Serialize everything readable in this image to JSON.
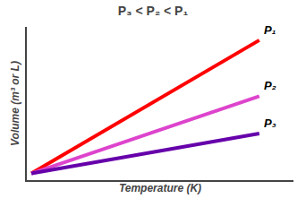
{
  "chart_data": {
    "type": "line",
    "title": "P₃ < P₂ < P₁",
    "xlabel": "Temperature (K)",
    "ylabel": "Volume (m³ or L)",
    "x": [
      0.0,
      1.0
    ],
    "series": [
      {
        "name": "P₁",
        "color": "#ff0000",
        "values": [
          0.0,
          1.0
        ]
      },
      {
        "name": "P₂",
        "color": "#dd44cc",
        "values": [
          0.0,
          0.58
        ]
      },
      {
        "name": "P₃",
        "color": "#6600aa",
        "values": [
          0.0,
          0.3
        ]
      }
    ],
    "xlim": [
      -0.02,
      1.15
    ],
    "ylim": [
      -0.05,
      1.1
    ],
    "xticks": [],
    "yticks": [],
    "tick_labels": false,
    "grid": false
  }
}
